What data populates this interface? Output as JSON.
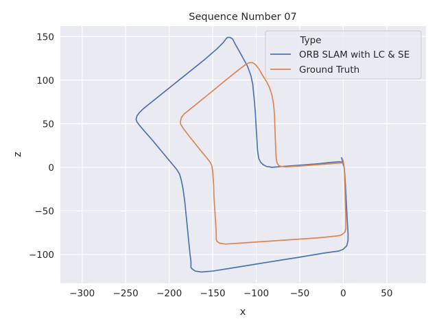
{
  "chart_data": {
    "type": "line",
    "title": "Sequence Number 07",
    "xlabel": "x",
    "ylabel": "z",
    "xlim": [
      -325,
      95
    ],
    "ylim": [
      -133,
      162
    ],
    "xticks": [
      -300,
      -250,
      -200,
      -150,
      -100,
      -50,
      0,
      50
    ],
    "yticks": [
      -100,
      -50,
      0,
      50,
      100,
      150
    ],
    "grid": true,
    "background": "#eaeaf2",
    "legend": {
      "title": "Type",
      "placement": "top-right"
    },
    "series": [
      {
        "name": "ORB SLAM with LC & SE",
        "color": "#4c72b0",
        "points": [
          [
            -2,
            11
          ],
          [
            -1,
            7
          ],
          [
            0,
            3
          ],
          [
            1,
            0
          ],
          [
            1.5,
            -5
          ],
          [
            2.5,
            -20
          ],
          [
            3.5,
            -40
          ],
          [
            4.5,
            -60
          ],
          [
            5.5,
            -76
          ],
          [
            5.5,
            -84
          ],
          [
            4,
            -90
          ],
          [
            0,
            -94
          ],
          [
            -5,
            -96
          ],
          [
            -20,
            -98
          ],
          [
            -50,
            -103
          ],
          [
            -75,
            -107
          ],
          [
            -100,
            -111
          ],
          [
            -125,
            -115
          ],
          [
            -150,
            -119
          ],
          [
            -163,
            -120
          ],
          [
            -170,
            -119
          ],
          [
            -173,
            -117
          ],
          [
            -175,
            -115
          ],
          [
            -175,
            -108
          ],
          [
            -176,
            -100
          ],
          [
            -177,
            -90
          ],
          [
            -178,
            -80
          ],
          [
            -180,
            -60
          ],
          [
            -182,
            -40
          ],
          [
            -184,
            -25
          ],
          [
            -186,
            -15
          ],
          [
            -188,
            -8
          ],
          [
            -191,
            -3
          ],
          [
            -195,
            2
          ],
          [
            -200,
            8
          ],
          [
            -210,
            20
          ],
          [
            -220,
            32
          ],
          [
            -228,
            41
          ],
          [
            -234,
            48
          ],
          [
            -237,
            52
          ],
          [
            -238,
            55
          ],
          [
            -237,
            59
          ],
          [
            -234,
            63
          ],
          [
            -230,
            67
          ],
          [
            -220,
            75
          ],
          [
            -200,
            91
          ],
          [
            -180,
            107
          ],
          [
            -160,
            123
          ],
          [
            -145,
            136
          ],
          [
            -138,
            143
          ],
          [
            -135,
            147
          ],
          [
            -133,
            149
          ],
          [
            -130,
            149
          ],
          [
            -127,
            147
          ],
          [
            -124,
            141
          ],
          [
            -120,
            134
          ],
          [
            -115,
            125
          ],
          [
            -110,
            116
          ],
          [
            -106,
            105
          ],
          [
            -104,
            95
          ],
          [
            -103,
            85
          ],
          [
            -102,
            75
          ],
          [
            -101,
            62
          ],
          [
            -100,
            45
          ],
          [
            -99,
            28
          ],
          [
            -98.5,
            20
          ],
          [
            -98,
            16
          ],
          [
            -97,
            10
          ],
          [
            -95,
            6
          ],
          [
            -92,
            3
          ],
          [
            -88,
            1
          ],
          [
            -82,
            0
          ],
          [
            -70,
            1
          ],
          [
            -50,
            2.5
          ],
          [
            -30,
            4
          ],
          [
            -15,
            5.5
          ],
          [
            -5,
            6.5
          ],
          [
            -2,
            6
          ],
          [
            0,
            4
          ]
        ]
      },
      {
        "name": "Ground Truth",
        "color": "#dd8452",
        "points": [
          [
            -1,
            10
          ],
          [
            0,
            7
          ],
          [
            0.5,
            4
          ],
          [
            1,
            0
          ],
          [
            1.5,
            -10
          ],
          [
            2,
            -25
          ],
          [
            2.5,
            -45
          ],
          [
            3,
            -60
          ],
          [
            3,
            -70
          ],
          [
            2,
            -74
          ],
          [
            0,
            -76
          ],
          [
            -3,
            -78
          ],
          [
            -10,
            -79
          ],
          [
            -30,
            -81
          ],
          [
            -60,
            -83
          ],
          [
            -90,
            -85
          ],
          [
            -120,
            -87
          ],
          [
            -135,
            -88
          ],
          [
            -142,
            -87
          ],
          [
            -145,
            -85
          ],
          [
            -146,
            -82
          ],
          [
            -146,
            -75
          ],
          [
            -146.5,
            -65
          ],
          [
            -147.5,
            -50
          ],
          [
            -148.5,
            -35
          ],
          [
            -149,
            -20
          ],
          [
            -150,
            -5
          ],
          [
            -151,
            2
          ],
          [
            -153,
            6
          ],
          [
            -157,
            11
          ],
          [
            -162,
            17
          ],
          [
            -170,
            27
          ],
          [
            -178,
            37
          ],
          [
            -184,
            45
          ],
          [
            -187,
            50
          ],
          [
            -187,
            53
          ],
          [
            -186,
            57
          ],
          [
            -183,
            61
          ],
          [
            -178,
            65
          ],
          [
            -168,
            73
          ],
          [
            -152,
            86
          ],
          [
            -135,
            100
          ],
          [
            -120,
            112
          ],
          [
            -112,
            118
          ],
          [
            -108,
            120
          ],
          [
            -104,
            120
          ],
          [
            -101,
            118
          ],
          [
            -97,
            113
          ],
          [
            -93,
            106
          ],
          [
            -88,
            98
          ],
          [
            -85,
            92
          ],
          [
            -82,
            83
          ],
          [
            -80,
            72
          ],
          [
            -79,
            60
          ],
          [
            -78.5,
            45
          ],
          [
            -78,
            30
          ],
          [
            -77.5,
            18
          ],
          [
            -77,
            10
          ],
          [
            -76,
            5
          ],
          [
            -74,
            2
          ],
          [
            -71,
            1
          ],
          [
            -66,
            0.5
          ],
          [
            -50,
            1.5
          ],
          [
            -30,
            3
          ],
          [
            -15,
            4
          ],
          [
            -5,
            5
          ],
          [
            -1,
            5
          ],
          [
            0.5,
            4
          ]
        ]
      }
    ]
  }
}
